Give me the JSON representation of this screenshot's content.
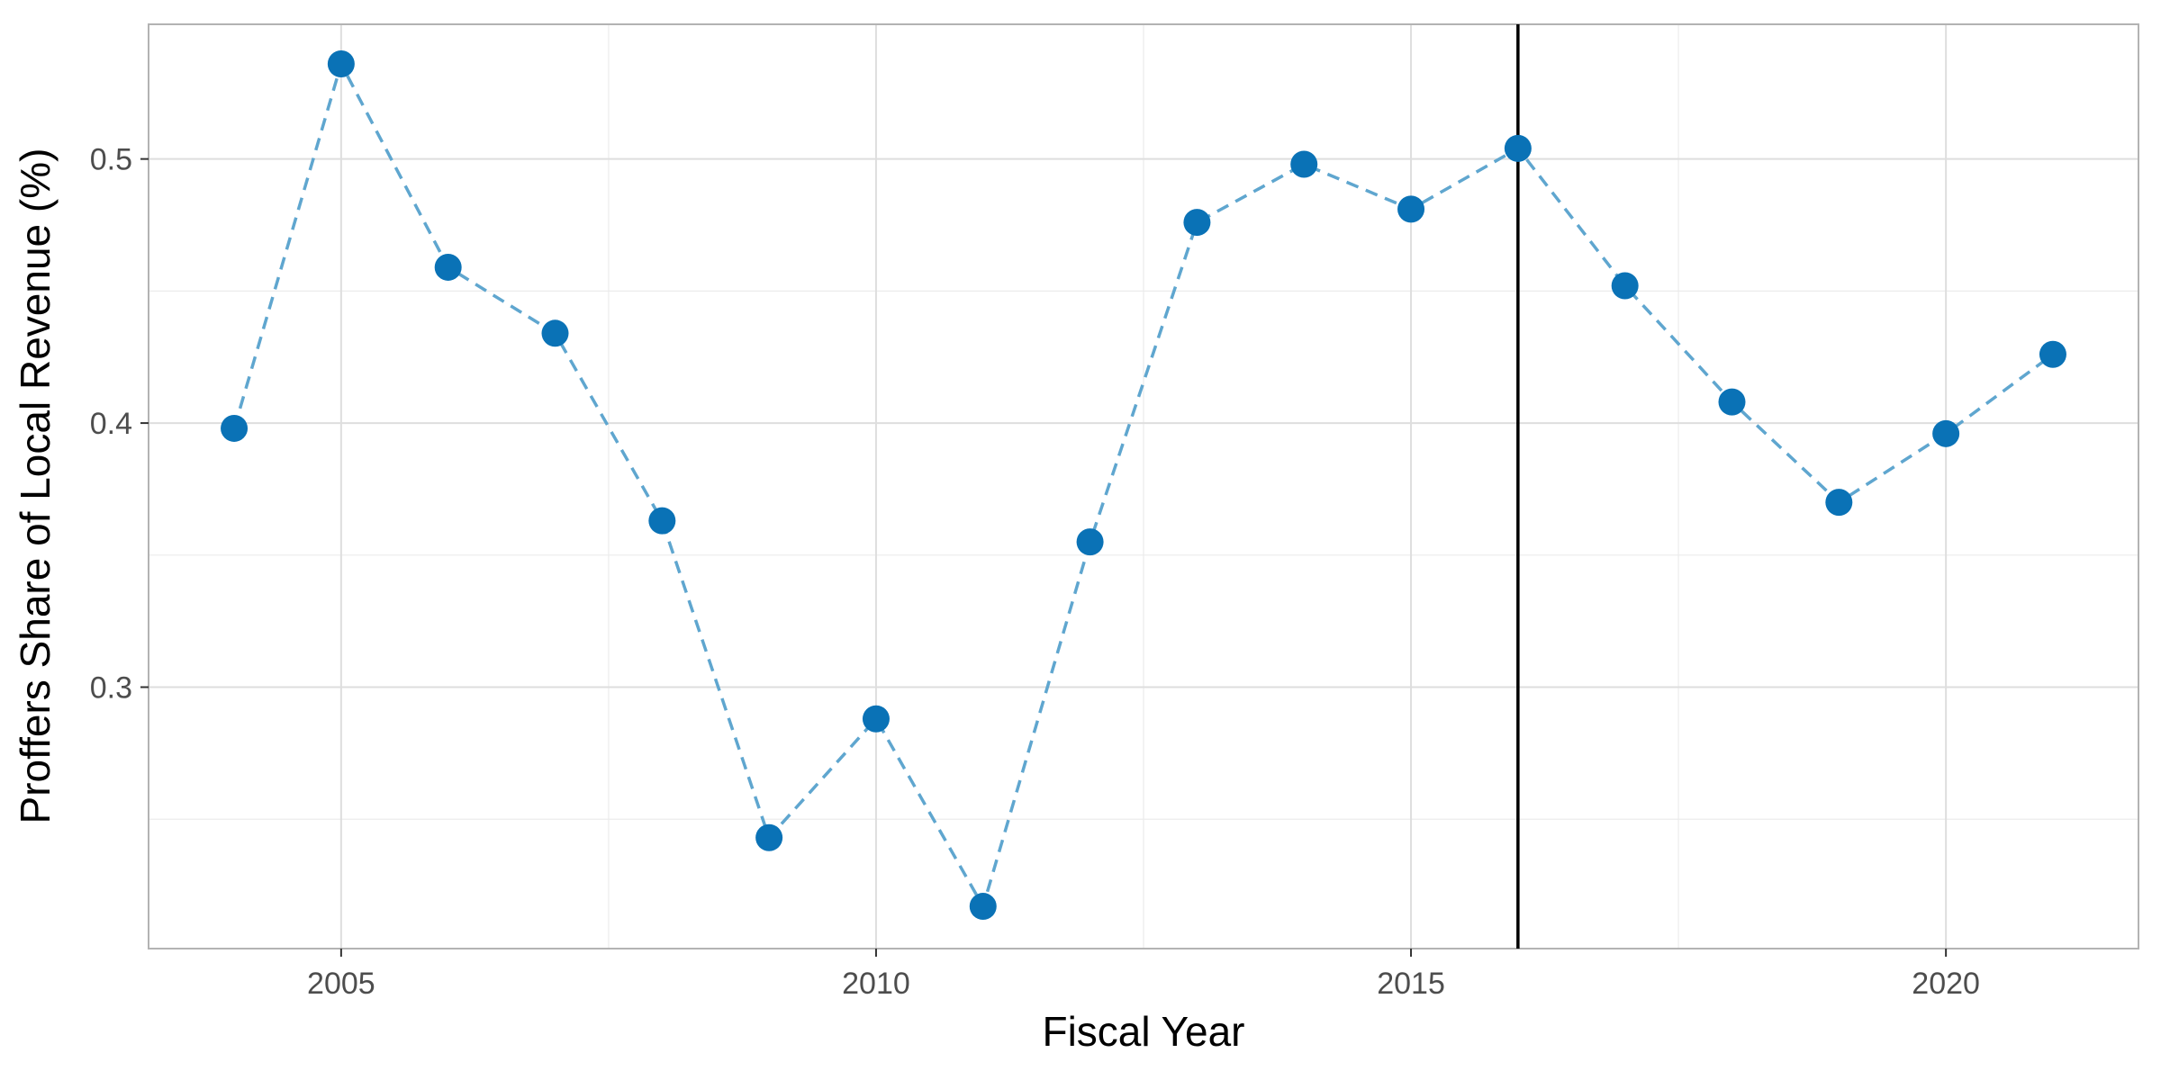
{
  "chart_data": {
    "type": "line",
    "title": "",
    "xlabel": "Fiscal Year",
    "ylabel": "Proffers Share of Local Revenue (%)",
    "xlim": [
      2003.2,
      2021.8
    ],
    "ylim": [
      0.201,
      0.551
    ],
    "x_ticks": [
      2005,
      2010,
      2015,
      2020
    ],
    "x_tick_labels": [
      "2005",
      "2010",
      "2015",
      "2020"
    ],
    "x_minor_ticks": [
      2007.5,
      2012.5,
      2017.5
    ],
    "y_ticks": [
      0.3,
      0.4,
      0.5
    ],
    "y_tick_labels": [
      "0.3",
      "0.4",
      "0.5"
    ],
    "y_minor_ticks": [
      0.25,
      0.35,
      0.45
    ],
    "grid": true,
    "legend": "none",
    "line_style": "dashed",
    "line_color": "#5fa6cf",
    "point_color": "#0a72b6",
    "vline": {
      "x": 2016,
      "color": "#000000"
    },
    "x": [
      2004,
      2005,
      2006,
      2007,
      2008,
      2009,
      2010,
      2011,
      2012,
      2013,
      2014,
      2015,
      2016,
      2017,
      2018,
      2019,
      2020,
      2021
    ],
    "y": [
      0.398,
      0.536,
      0.459,
      0.434,
      0.363,
      0.243,
      0.288,
      0.217,
      0.355,
      0.476,
      0.498,
      0.481,
      0.504,
      0.452,
      0.408,
      0.37,
      0.396,
      0.426
    ]
  }
}
